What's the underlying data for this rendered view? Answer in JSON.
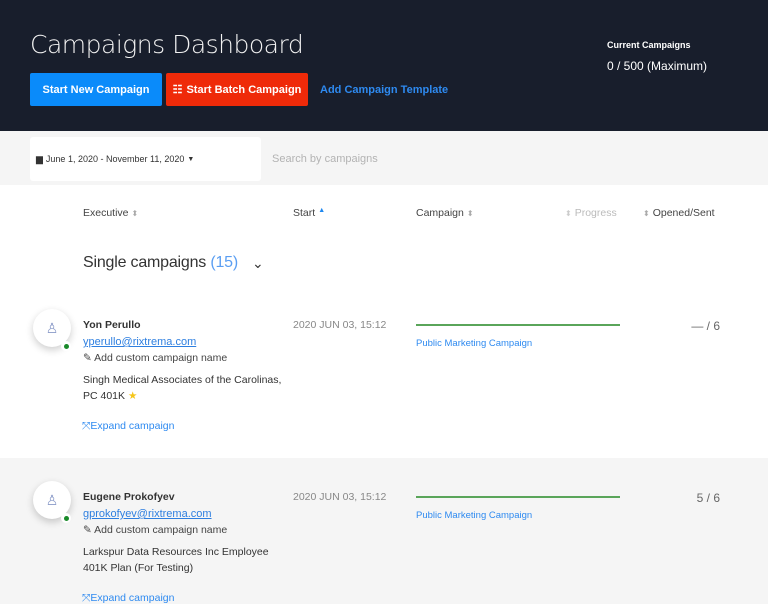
{
  "header": {
    "title": "Campaigns Dashboard",
    "buttons": {
      "new": "Start New Campaign",
      "batch": "Start Batch Campaign",
      "template": "Add Campaign Template"
    },
    "current_label": "Current Campaigns",
    "current_value": "0 / 500 (Maximum)"
  },
  "filter": {
    "date_range": "June 1, 2020 - November 11, 2020",
    "search_placeholder": "Search by campaigns"
  },
  "columns": {
    "executive": "Executive",
    "start": "Start",
    "campaign": "Campaign",
    "progress": "Progress",
    "opened": "Opened/Sent"
  },
  "group": {
    "title": "Single campaigns",
    "count": "(15)"
  },
  "rows": [
    {
      "name": "Yon Perullo",
      "email": "yperullo@rixtrema.com",
      "custom": "Add custom campaign name",
      "company": "Singh Medical Associates of the Carolinas, PC 401K",
      "starred": true,
      "start": "2020 JUN 03, 15:12",
      "progress": 1.0,
      "campaign": "Public Marketing Campaign",
      "opened": "— / 6",
      "expand": "Expand campaign"
    },
    {
      "name": "Eugene Prokofyev",
      "email": "gprokofyev@rixtrema.com",
      "custom": "Add custom campaign name",
      "company": "Larkspur Data Resources Inc Employee 401K Plan (For Testing)",
      "starred": false,
      "start": "2020 JUN 03, 15:12",
      "progress": 1.0,
      "campaign": "Public Marketing Campaign",
      "opened": "5 / 6",
      "expand": "Expand campaign"
    }
  ],
  "colors": {
    "header_bg": "#181e2c",
    "primary": "#0a8bfa",
    "danger": "#ef2a09",
    "progress": "#5aa55a",
    "online": "#1a8a2a"
  }
}
